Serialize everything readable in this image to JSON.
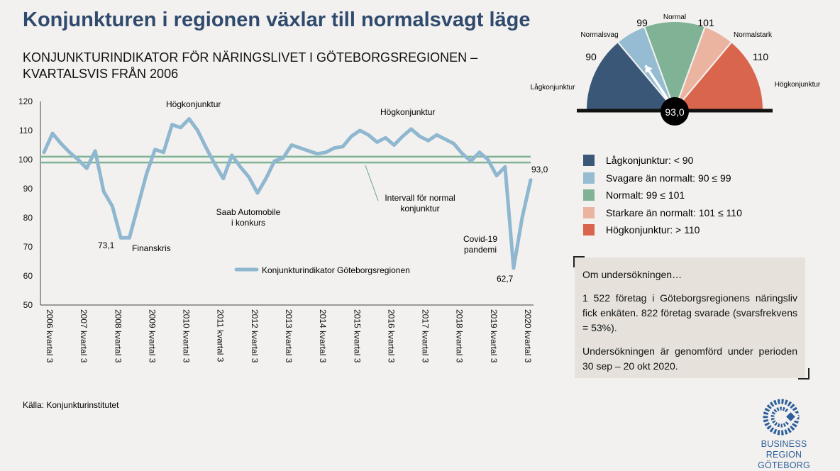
{
  "title": "Konjunkturen i regionen växlar till normalsvagt läge",
  "subtitle_line1": "KONJUNKTURINDIKATOR FÖR NÄRINGSLIVET I GÖTEBORGSREGIONEN –",
  "subtitle_line2": "KVARTALSVIS FRÅN 2006",
  "source": "Källa: Konjunkturinstitutet",
  "chart_data": {
    "type": "line",
    "ylim": [
      50,
      120
    ],
    "yticks": [
      50,
      60,
      70,
      80,
      90,
      100,
      110,
      120
    ],
    "x_tick_labels": [
      "2006 kvartal 3",
      "2007 kvartal 3",
      "2008 kvartal 3",
      "2009 kvartal 3",
      "2010 kvartal 3",
      "2011 kvartal 3",
      "2012 kvartal 3",
      "2013 kvartal 3",
      "2014 kvartal 3",
      "2015 kvartal 3",
      "2016 kvartal 3",
      "2017 kvartal 3",
      "2018 kvartal 3",
      "2019 kvartal 3",
      "2020 kvartal 3"
    ],
    "series": [
      {
        "name": "Konjunkturindikator Göteborgsregionen",
        "color": "#8fb7d0",
        "values": [
          102.5,
          109,
          105.5,
          102.5,
          100,
          97,
          103,
          89,
          84,
          73.1,
          73.1,
          84,
          95,
          103.5,
          102.5,
          112,
          111,
          114,
          110,
          104,
          98.5,
          93.5,
          101.5,
          97.5,
          94,
          88.5,
          93.5,
          99.5,
          100.5,
          105,
          104,
          103,
          102,
          102.5,
          104,
          104.5,
          108,
          110,
          108.5,
          106,
          107.5,
          105,
          108,
          110.5,
          108,
          106.5,
          108.5,
          107,
          105.5,
          102,
          99.5,
          102.5,
          100,
          94.5,
          97.5,
          62.7,
          80,
          93.0
        ]
      }
    ],
    "normal_band": [
      99,
      101
    ],
    "normal_band_color": "#7fb394",
    "annotations": {
      "hogkonj_1": "Högkonjunktur",
      "hogkonj_2": "Högkonjunktur",
      "min_2008": "73,1",
      "finanskris": "Finanskris",
      "saab": "Saab Automobile\ni konkurs",
      "intervall": "Intervall för normal\nkonjunktur",
      "covid": "Covid-19\npandemi",
      "min_2020": "62,7",
      "last_value": "93,0"
    },
    "legend_label": "Konjunkturindikator Göteborgsregionen"
  },
  "gauge": {
    "value_label": "93,0",
    "value": 93.0,
    "boundaries": [
      "90",
      "99",
      "101",
      "110"
    ],
    "segment_labels": [
      "Lågkonjunktur",
      "Normalsvag",
      "Normal",
      "Normalstark",
      "Högkonjunktur"
    ],
    "segment_colors": [
      "#3b5778",
      "#95bcd3",
      "#80b395",
      "#ebb4a1",
      "#d9654d"
    ]
  },
  "legend": [
    {
      "label": "Lågkonjunktur: < 90",
      "color": "#3b5778"
    },
    {
      "label": "Svagare än normalt: 90 ≤ 99",
      "color": "#95bcd3"
    },
    {
      "label": "Normalt: 99 ≤ 101",
      "color": "#80b395"
    },
    {
      "label": "Starkare än normalt: 101 ≤ 110",
      "color": "#ebb4a1"
    },
    {
      "label": "Högkonjunktur: > 110",
      "color": "#d9654d"
    }
  ],
  "info": {
    "heading": "Om undersökningen…",
    "p1": "1 522 företag i Göteborgsregionens näringsliv fick enkäten. 822 företag svarade (svarsfrekvens = 53%).",
    "p2": "Undersökningen är genomförd under perioden 30 sep – 20 okt 2020."
  },
  "logo": {
    "line1": "BUSINESS REGION",
    "line2": "GÖTEBORG"
  }
}
